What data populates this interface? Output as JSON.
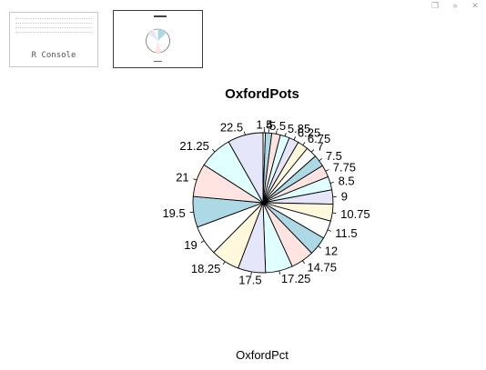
{
  "window": {
    "controls": [
      "❐",
      "»",
      "✕"
    ]
  },
  "thumbnails": {
    "console_caption": "R Console"
  },
  "chart_data": {
    "type": "pie",
    "title": "OxfordPots",
    "xlabel": "OxfordPct",
    "labels": [
      "1.5",
      "4",
      "5.5",
      "5.85",
      "6.25",
      "6.75",
      "7",
      "7.5",
      "7.75",
      "8.5",
      "9",
      "10.75",
      "11.5",
      "12",
      "14.75",
      "17.25",
      "17.5",
      "18.25",
      "19",
      "19.5",
      "21",
      "21.25",
      "22.5"
    ],
    "values": [
      1.5,
      4,
      5.5,
      5.85,
      6.25,
      6.75,
      7,
      7.5,
      7.75,
      8.5,
      9,
      10.75,
      11.5,
      12,
      14.75,
      17.25,
      17.5,
      18.25,
      19,
      19.5,
      21,
      21.25,
      22.5
    ],
    "colors": [
      "#ffffff",
      "#add8e6",
      "#ffe4e1",
      "#e0ffff",
      "#e6e6fa",
      "#fff8dc"
    ],
    "direction": "clockwise",
    "start": "top"
  }
}
